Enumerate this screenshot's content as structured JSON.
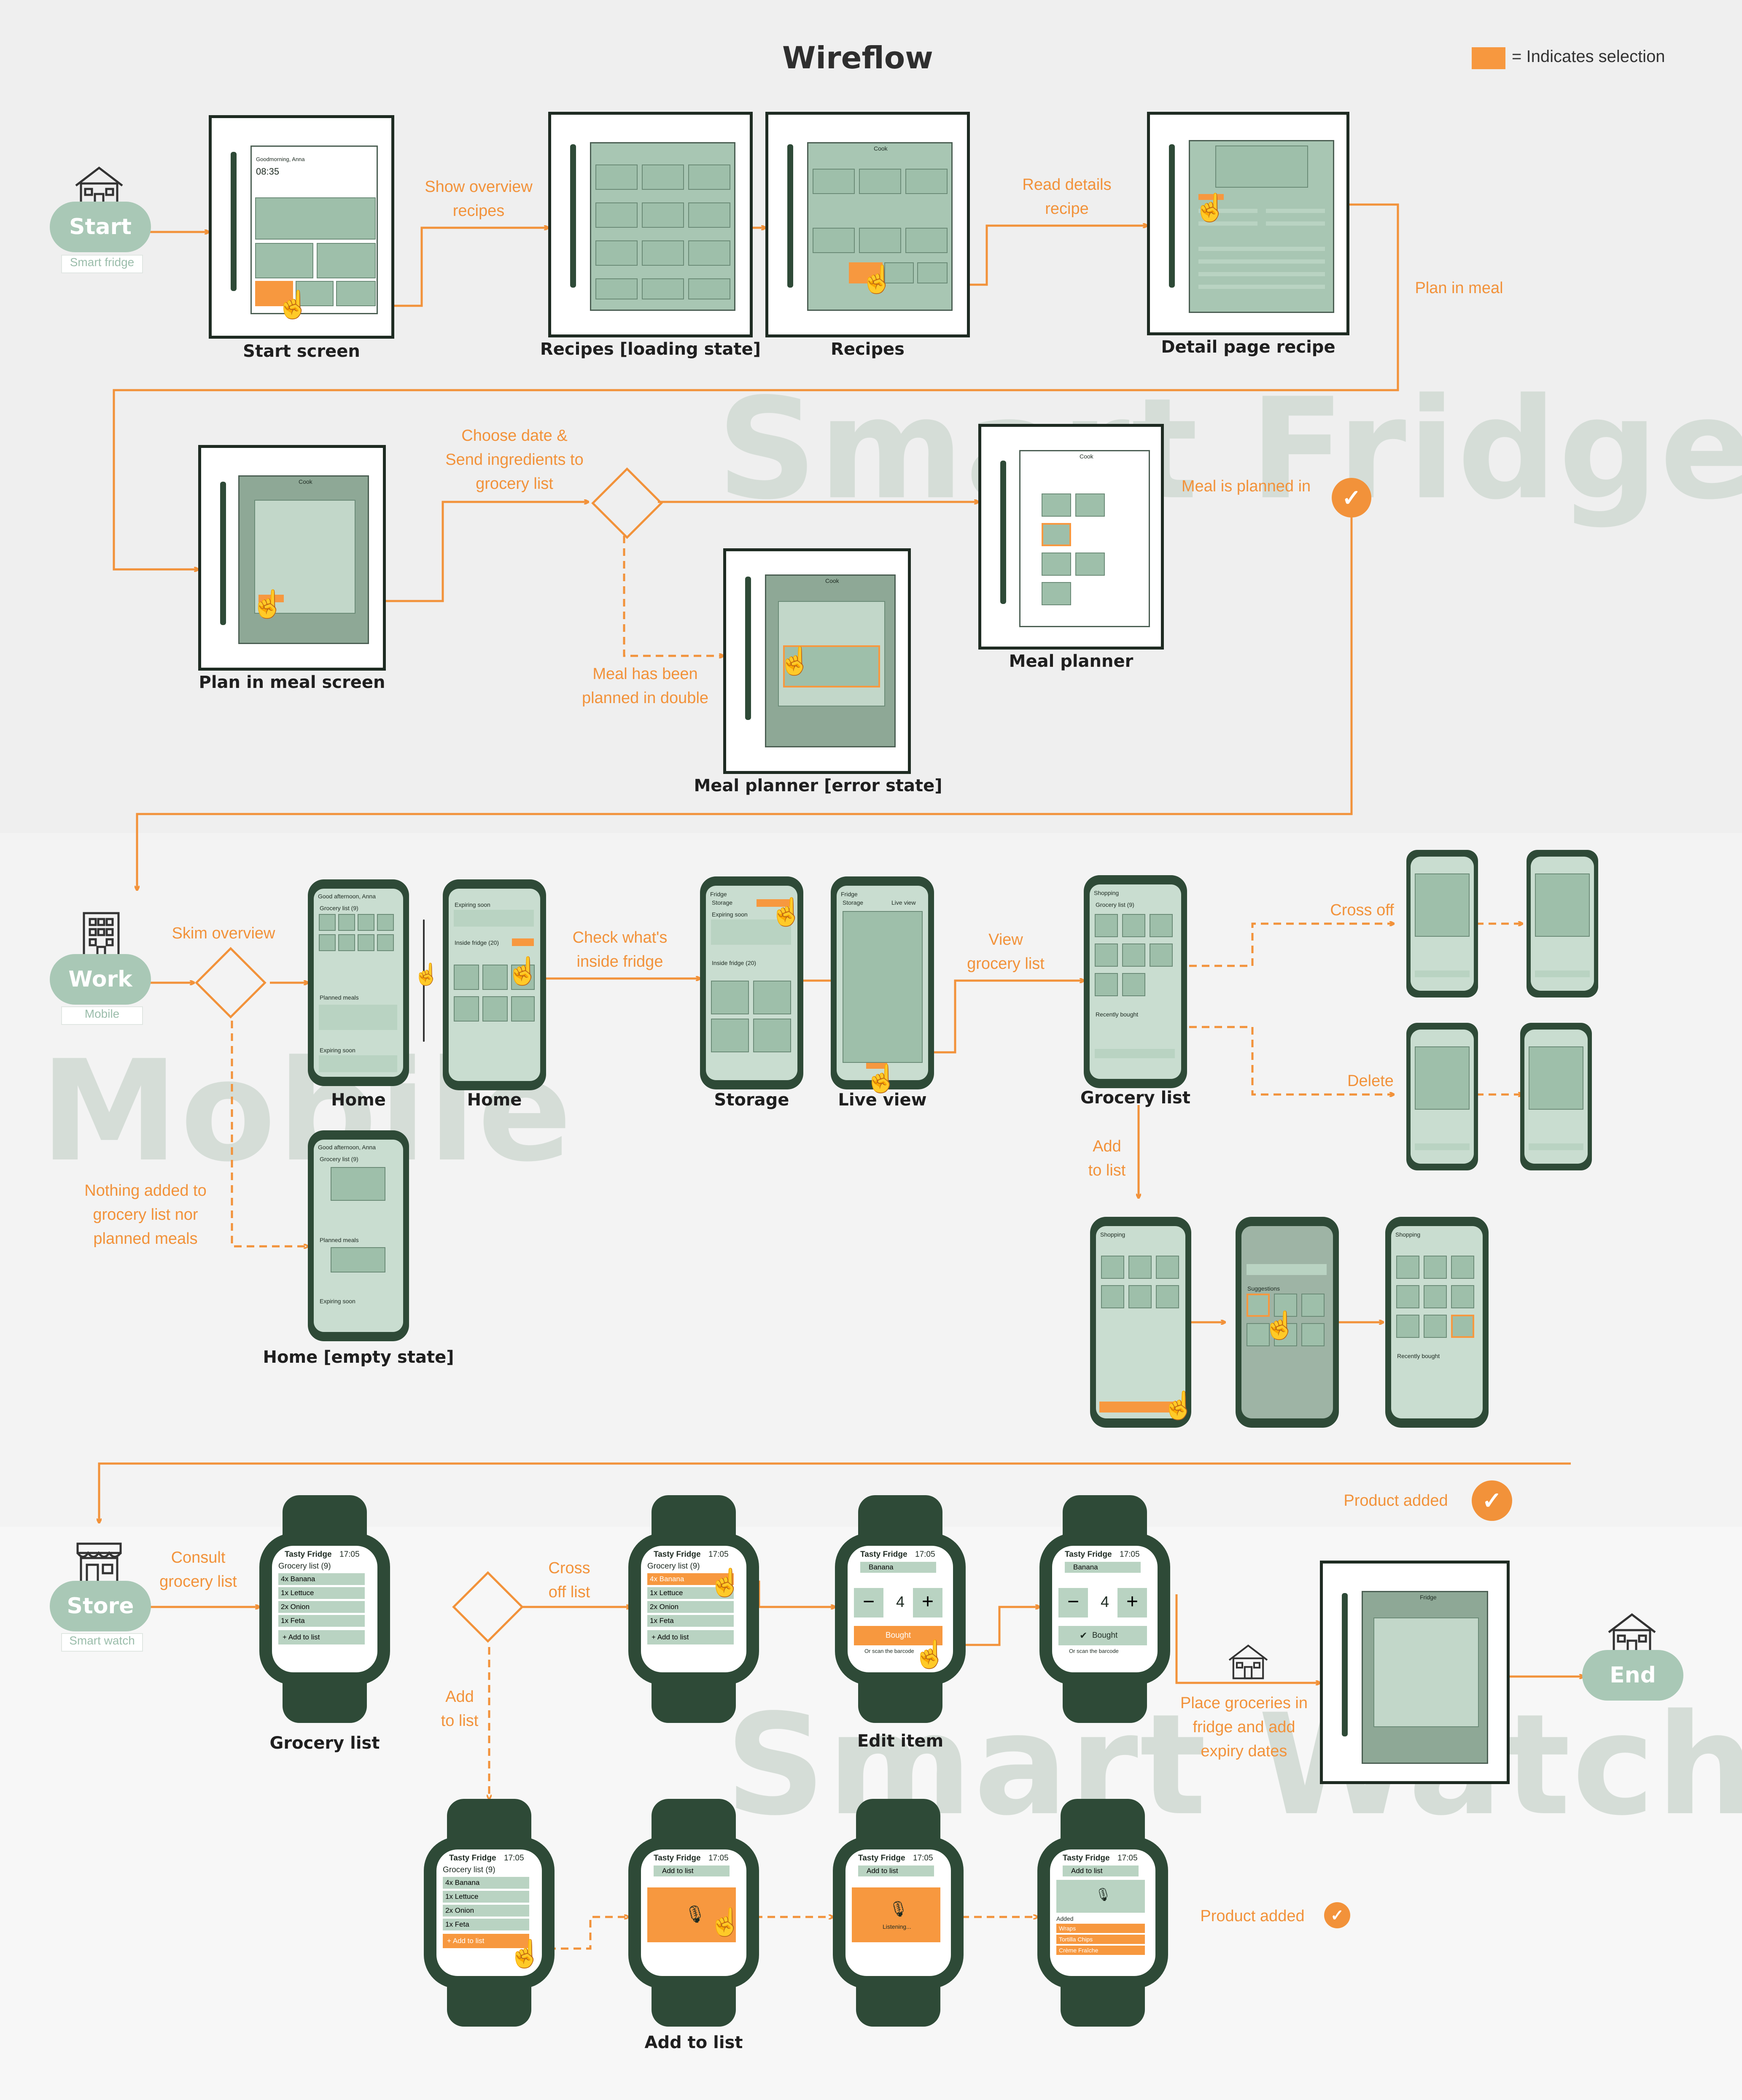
{
  "title": "Wireflow",
  "legend": {
    "text": "= Indicates selection",
    "color": "#f7983f"
  },
  "colors": {
    "accent": "#f2923a",
    "dark_green": "#2e4a37",
    "pill_green": "#a9c8b6",
    "screen_green": "#a8c6b3"
  },
  "sections": {
    "fridge": {
      "watermark": "Smart Fridge"
    },
    "mobile": {
      "watermark": "Mobile"
    },
    "watch": {
      "watermark": "Smart Watch"
    }
  },
  "terminals": {
    "start": {
      "label": "Start",
      "sub": "Smart fridge",
      "icon": "house-icon"
    },
    "work": {
      "label": "Work",
      "sub": "Mobile",
      "icon": "office-building-icon"
    },
    "store": {
      "label": "Store",
      "sub": "Smart watch",
      "icon": "store-icon"
    },
    "end": {
      "label": "End",
      "icon": "house-icon"
    }
  },
  "screen_captions": {
    "start_screen": "Start screen",
    "recipes_loading": "Recipes [loading state]",
    "recipes": "Recipes",
    "detail_recipe": "Detail page recipe",
    "plan_in_meal": "Plan in meal screen",
    "meal_planner": "Meal planner",
    "meal_planner_error": "Meal planner [error state]",
    "home_1": "Home",
    "home_2": "Home",
    "home_empty": "Home [empty state]",
    "storage": "Storage",
    "live_view": "Live view",
    "grocery_list_mobile": "Grocery list",
    "grocery_list_watch": "Grocery list",
    "edit_item": "Edit item",
    "add_to_list": "Add to list"
  },
  "flow_labels": {
    "show_overview": "Show overview\nrecipes",
    "read_details": "Read details\nrecipe",
    "plan_in_meal": "Plan in meal",
    "choose_date": "Choose date &\nSend ingredients to\ngrocery list",
    "meal_double": "Meal has been\nplanned in double",
    "meal_planned": "Meal is planned in",
    "skim_overview": "Skim overview",
    "check_inside": "Check what's\ninside fridge",
    "view_grocery": "View\ngrocery list",
    "cross_off_mobile": "Cross off",
    "delete": "Delete",
    "add_to_list_mobile": "Add\nto list",
    "nothing_added": "Nothing added to\ngrocery list nor\nplanned meals",
    "product_added_mobile": "Product added",
    "consult_grocery": "Consult\ngrocery list",
    "cross_off_watch": "Cross\noff list",
    "add_to_list_watch": "Add\nto list",
    "place_groceries": "Place groceries in\nfridge and add\nexpiry dates",
    "product_added_watch": "Product added"
  },
  "fridge_texts": {
    "start_greeting": "Goodmorning, Anna",
    "start_time": "08:35",
    "cook_header": "Cook",
    "fridge_header": "Fridge"
  },
  "mobile_texts": {
    "greeting": "Good afternoon, Anna",
    "grocery_list": "Grocery list (9)",
    "planned_meals": "Planned meals",
    "expiring_soon": "Expiring soon",
    "inside_fridge": "Inside fridge (20)",
    "fridge": "Fridge",
    "storage_tab": "Storage",
    "live_view_tab": "Live view",
    "shopping": "Shopping",
    "recently_bought": "Recently bought",
    "search_prompt": "What do you want to buy?",
    "suggestions": "Suggestions"
  },
  "watch_texts": {
    "app": "Tasty Fridge",
    "time": "17:05",
    "list_header": "Grocery list (9)",
    "items": [
      "4x Banana",
      "1x Lettuce",
      "2x Onion",
      "1x Feta"
    ],
    "add_to_list": "+ Add to list",
    "add_to_list_header": "Add to list",
    "edit_item_name": "Banana",
    "quantity": "4",
    "bought": "Bought",
    "scan_hint": "Or scan the barcode",
    "listening": "Listening...",
    "added": "Added",
    "added_items": [
      "Wraps",
      "Tortilla Chips",
      "Crème Fraîche"
    ]
  }
}
